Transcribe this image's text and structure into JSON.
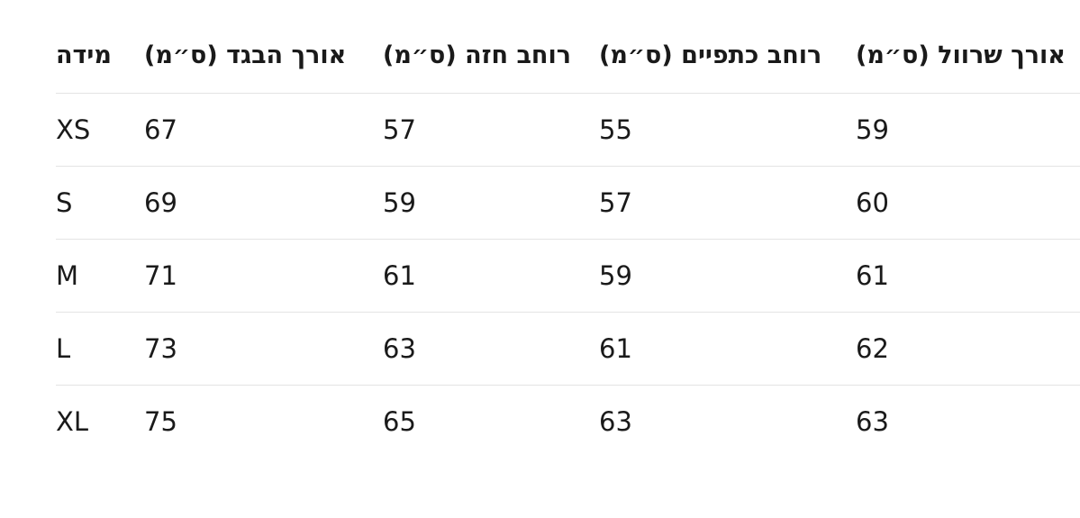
{
  "chart_data": {
    "type": "table",
    "columns": [
      "מידה",
      "אורך הבגד (ס״מ)",
      "רוחב חזה (ס״מ)",
      "רוחב כתפיים (ס״מ)",
      "אורך שרוול (ס״מ)"
    ],
    "rows": [
      [
        "XS",
        "67",
        "57",
        "55",
        "59"
      ],
      [
        "S",
        "69",
        "59",
        "57",
        "60"
      ],
      [
        "M",
        "71",
        "61",
        "59",
        "61"
      ],
      [
        "L",
        "73",
        "63",
        "61",
        "62"
      ],
      [
        "XL",
        "75",
        "65",
        "63",
        "63"
      ]
    ],
    "layout_hints": {
      "grid": "horizontal-row-separators-only",
      "header_style": "bold",
      "column_alignment": "left"
    }
  },
  "colors": {
    "background": "#ffffff",
    "text": "#1a1a1a",
    "divider": "#e4e4e4"
  }
}
